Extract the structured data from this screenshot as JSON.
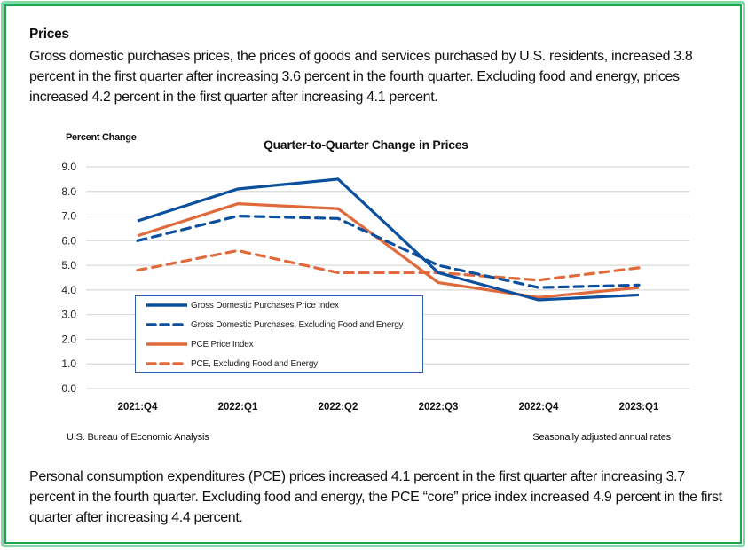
{
  "section": {
    "heading": "Prices",
    "intro": "Gross domestic purchases prices, the prices of goods and services purchased by U.S. residents, increased 3.8 percent in the first quarter after increasing 3.6 percent in the fourth quarter. Excluding food and energy, prices increased 4.2 percent in the first quarter after increasing 4.1 percent.",
    "closing": "Personal consumption expenditures (PCE) prices increased 4.1 percent in the first quarter after increasing 3.7 percent in the fourth quarter. Excluding food and energy, the PCE “core” price index increased 4.9 percent in the first quarter after increasing 4.4 percent."
  },
  "colors": {
    "blue": "#0c4f9e",
    "orange": "#e06a3b",
    "grid": "#d9d9d9",
    "frame": "#19a84a"
  },
  "chart_data": {
    "type": "line",
    "title": "Quarter-to-Quarter Change in Prices",
    "ylabel": "Percent Change",
    "xlabel": "",
    "categories": [
      "2021:Q4",
      "2022:Q1",
      "2022:Q2",
      "2022:Q3",
      "2022:Q4",
      "2023:Q1"
    ],
    "ylim": [
      0,
      9
    ],
    "yticks": [
      "0.0",
      "1.0",
      "2.0",
      "3.0",
      "4.0",
      "5.0",
      "6.0",
      "7.0",
      "8.0",
      "9.0"
    ],
    "grid": true,
    "legend_position": "lower-left",
    "series": [
      {
        "name": "Gross Domestic Purchases Price Index",
        "color": "#0c4f9e",
        "dashed": false,
        "values": [
          6.8,
          8.1,
          8.5,
          4.7,
          3.6,
          3.8
        ]
      },
      {
        "name": "Gross Domestic Purchases, Excluding Food and Energy",
        "color": "#0c4f9e",
        "dashed": true,
        "values": [
          6.0,
          7.0,
          6.9,
          5.0,
          4.1,
          4.2
        ]
      },
      {
        "name": "PCE Price Index",
        "color": "#e06a3b",
        "dashed": false,
        "values": [
          6.2,
          7.5,
          7.3,
          4.3,
          3.7,
          4.1
        ]
      },
      {
        "name": "PCE, Excluding Food and Energy",
        "color": "#e06a3b",
        "dashed": true,
        "values": [
          4.8,
          5.6,
          4.7,
          4.7,
          4.4,
          4.9
        ]
      }
    ],
    "source": "U.S. Bureau of Economic Analysis",
    "note": "Seasonally adjusted annual rates"
  }
}
